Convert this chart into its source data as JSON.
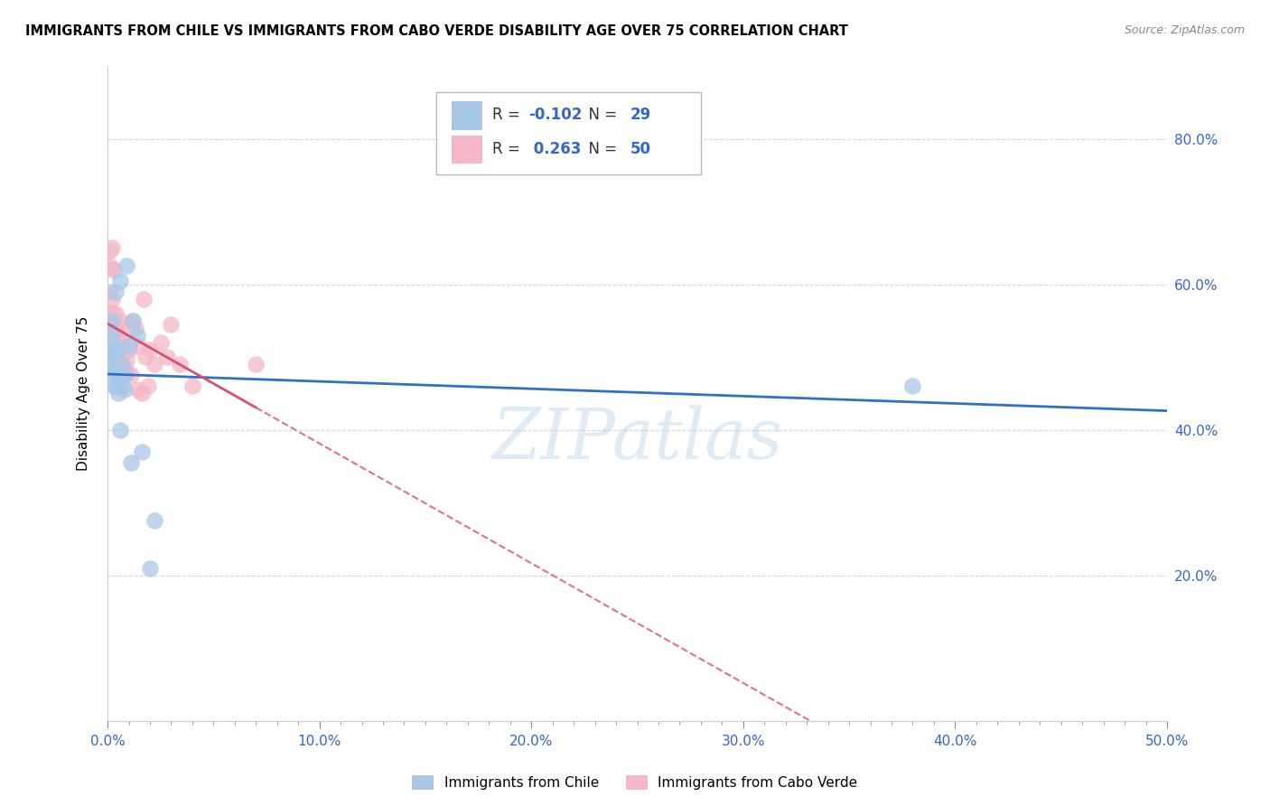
{
  "title": "IMMIGRANTS FROM CHILE VS IMMIGRANTS FROM CABO VERDE DISABILITY AGE OVER 75 CORRELATION CHART",
  "source": "Source: ZipAtlas.com",
  "ylabel": "Disability Age Over 75",
  "xlim": [
    0.0,
    0.5
  ],
  "ylim": [
    0.0,
    0.9
  ],
  "xtick_labels": [
    "0.0%",
    "",
    "",
    "",
    "",
    "",
    "",
    "",
    "",
    "",
    "10.0%",
    "",
    "",
    "",
    "",
    "",
    "",
    "",
    "",
    "",
    "20.0%",
    "",
    "",
    "",
    "",
    "",
    "",
    "",
    "",
    "",
    "30.0%",
    "",
    "",
    "",
    "",
    "",
    "",
    "",
    "",
    "",
    "40.0%",
    "",
    "",
    "",
    "",
    "",
    "",
    "",
    "",
    "",
    "50.0%"
  ],
  "xtick_vals": [
    0.0,
    0.01,
    0.02,
    0.03,
    0.04,
    0.05,
    0.06,
    0.07,
    0.08,
    0.09,
    0.1,
    0.11,
    0.12,
    0.13,
    0.14,
    0.15,
    0.16,
    0.17,
    0.18,
    0.19,
    0.2,
    0.21,
    0.22,
    0.23,
    0.24,
    0.25,
    0.26,
    0.27,
    0.28,
    0.29,
    0.3,
    0.31,
    0.32,
    0.33,
    0.34,
    0.35,
    0.36,
    0.37,
    0.38,
    0.39,
    0.4,
    0.41,
    0.42,
    0.43,
    0.44,
    0.45,
    0.46,
    0.47,
    0.48,
    0.49,
    0.5
  ],
  "xtick_major_labels": [
    "0.0%",
    "10.0%",
    "20.0%",
    "30.0%",
    "40.0%",
    "50.0%"
  ],
  "xtick_major_vals": [
    0.0,
    0.1,
    0.2,
    0.3,
    0.4,
    0.5
  ],
  "ytick_labels": [
    "20.0%",
    "40.0%",
    "60.0%",
    "80.0%"
  ],
  "ytick_vals": [
    0.2,
    0.4,
    0.6,
    0.8
  ],
  "legend_blue_r": "-0.102",
  "legend_blue_n": "29",
  "legend_pink_r": "0.263",
  "legend_pink_n": "50",
  "legend_blue_label": "Immigrants from Chile",
  "legend_pink_label": "Immigrants from Cabo Verde",
  "blue_scatter_color": "#a8c8e8",
  "pink_scatter_color": "#f4b8c8",
  "trendline_blue_color": "#3070c8",
  "trendline_pink_solid_color": "#d85070",
  "trendline_pink_dashed_color": "#e07090",
  "watermark": "ZIPatlas",
  "chile_x": [
    0.001,
    0.001,
    0.002,
    0.002,
    0.002,
    0.003,
    0.003,
    0.003,
    0.004,
    0.004,
    0.004,
    0.005,
    0.005,
    0.005,
    0.006,
    0.006,
    0.007,
    0.007,
    0.008,
    0.008,
    0.009,
    0.01,
    0.011,
    0.012,
    0.014,
    0.016,
    0.02,
    0.022,
    0.38
  ],
  "chile_y": [
    0.485,
    0.5,
    0.52,
    0.53,
    0.55,
    0.46,
    0.475,
    0.505,
    0.46,
    0.48,
    0.59,
    0.45,
    0.47,
    0.51,
    0.4,
    0.605,
    0.46,
    0.49,
    0.455,
    0.475,
    0.625,
    0.515,
    0.355,
    0.55,
    0.53,
    0.37,
    0.21,
    0.275,
    0.46
  ],
  "caboverde_x": [
    0.001,
    0.001,
    0.001,
    0.001,
    0.002,
    0.002,
    0.002,
    0.002,
    0.002,
    0.003,
    0.003,
    0.003,
    0.003,
    0.003,
    0.004,
    0.004,
    0.004,
    0.004,
    0.005,
    0.005,
    0.005,
    0.005,
    0.006,
    0.006,
    0.006,
    0.007,
    0.007,
    0.007,
    0.008,
    0.008,
    0.009,
    0.009,
    0.01,
    0.011,
    0.012,
    0.013,
    0.014,
    0.015,
    0.016,
    0.017,
    0.018,
    0.019,
    0.02,
    0.022,
    0.025,
    0.028,
    0.03,
    0.034,
    0.04,
    0.07
  ],
  "caboverde_y": [
    0.625,
    0.56,
    0.59,
    0.645,
    0.58,
    0.56,
    0.62,
    0.65,
    0.56,
    0.54,
    0.555,
    0.525,
    0.51,
    0.62,
    0.545,
    0.56,
    0.5,
    0.535,
    0.47,
    0.5,
    0.49,
    0.52,
    0.5,
    0.525,
    0.55,
    0.49,
    0.505,
    0.54,
    0.475,
    0.52,
    0.48,
    0.495,
    0.51,
    0.475,
    0.55,
    0.54,
    0.455,
    0.515,
    0.45,
    0.58,
    0.5,
    0.46,
    0.51,
    0.49,
    0.52,
    0.5,
    0.545,
    0.49,
    0.46,
    0.49
  ]
}
